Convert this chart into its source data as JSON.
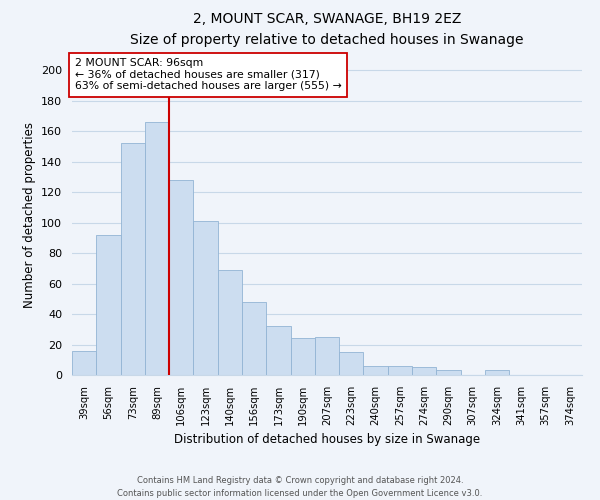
{
  "title": "2, MOUNT SCAR, SWANAGE, BH19 2EZ",
  "subtitle": "Size of property relative to detached houses in Swanage",
  "xlabel": "Distribution of detached houses by size in Swanage",
  "ylabel": "Number of detached properties",
  "bar_labels": [
    "39sqm",
    "56sqm",
    "73sqm",
    "89sqm",
    "106sqm",
    "123sqm",
    "140sqm",
    "156sqm",
    "173sqm",
    "190sqm",
    "207sqm",
    "223sqm",
    "240sqm",
    "257sqm",
    "274sqm",
    "290sqm",
    "307sqm",
    "324sqm",
    "341sqm",
    "357sqm",
    "374sqm"
  ],
  "bar_values": [
    16,
    92,
    152,
    166,
    128,
    101,
    69,
    48,
    32,
    24,
    25,
    15,
    6,
    6,
    5,
    3,
    0,
    3,
    0,
    0,
    0
  ],
  "bar_color": "#ccddf0",
  "bar_edge_color": "#92b4d4",
  "vline_color": "#cc0000",
  "vline_bar_index": 4,
  "annotation_text": "2 MOUNT SCAR: 96sqm\n← 36% of detached houses are smaller (317)\n63% of semi-detached houses are larger (555) →",
  "annotation_box_color": "white",
  "annotation_box_edge": "#cc0000",
  "ylim": [
    0,
    210
  ],
  "yticks": [
    0,
    20,
    40,
    60,
    80,
    100,
    120,
    140,
    160,
    180,
    200
  ],
  "footer_line1": "Contains HM Land Registry data © Crown copyright and database right 2024.",
  "footer_line2": "Contains public sector information licensed under the Open Government Licence v3.0.",
  "bg_color": "#f0f4fa",
  "grid_color": "#c8d8e8"
}
